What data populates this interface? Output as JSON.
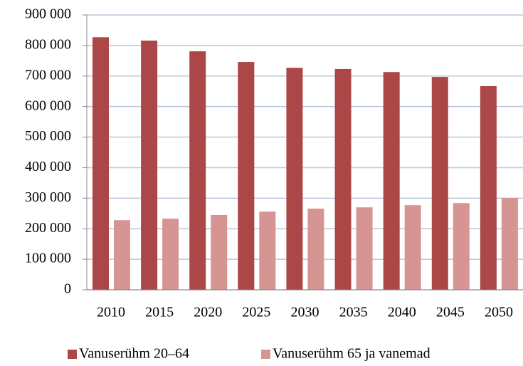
{
  "chart_data": {
    "type": "bar",
    "categories": [
      "2010",
      "2015",
      "2020",
      "2025",
      "2030",
      "2035",
      "2040",
      "2045",
      "2050"
    ],
    "series": [
      {
        "name": "Vanuserühm 20–64",
        "color": "#ab4746",
        "values": [
          827000,
          816000,
          781000,
          746000,
          727000,
          723000,
          713000,
          697000,
          667000
        ]
      },
      {
        "name": "Vanuserühm 65 ja vanemad",
        "color": "#d69593",
        "values": [
          228000,
          233000,
          245000,
          256000,
          266000,
          270000,
          277000,
          284000,
          301000
        ]
      }
    ],
    "ylim": [
      0,
      900000
    ],
    "yticks": [
      0,
      {
        "value": 100000,
        "label": "100 000"
      },
      {
        "value": 200000,
        "label": "200 000"
      },
      {
        "value": 300000,
        "label": "300 000"
      },
      {
        "value": 400000,
        "label": "400 000"
      },
      {
        "value": 500000,
        "label": "500 000"
      },
      {
        "value": 600000,
        "label": "600 000"
      },
      {
        "value": 700000,
        "label": "700 000"
      },
      {
        "value": 800000,
        "label": "800 000"
      },
      {
        "value": 900000,
        "label": "900 000"
      }
    ],
    "grid": true,
    "legend": "bottom"
  }
}
